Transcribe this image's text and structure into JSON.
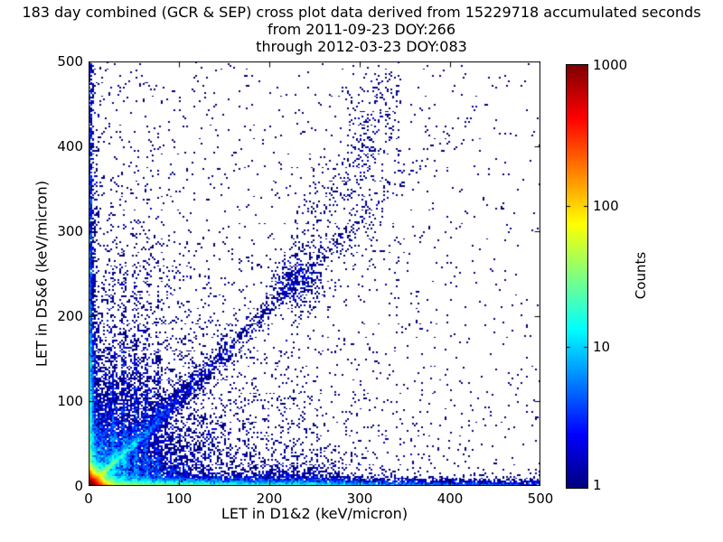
{
  "chart_data": {
    "type": "heatmap",
    "title_lines": [
      "183 day combined (GCR & SEP) cross plot data derived from 15229718 accumulated seconds",
      "from 2011-09-23 DOY:266",
      "through 2012-03-23 DOY:083"
    ],
    "xlabel": "LET in D1&2 (keV/micron)",
    "ylabel": "LET in D5&6 (keV/micron)",
    "xlim": [
      0,
      500
    ],
    "ylim": [
      0,
      500
    ],
    "xticks": [
      0,
      100,
      200,
      300,
      400,
      500
    ],
    "yticks": [
      0,
      100,
      200,
      300,
      400,
      500
    ],
    "grid": false,
    "bins": 250,
    "bin_size_kev_per_micron": 2,
    "colorbar": {
      "label": "Counts",
      "scale": "log",
      "min": 1,
      "max": 1000,
      "ticks": [
        1,
        10,
        100,
        1000
      ],
      "colormap": "jet"
    },
    "seed": 20120323,
    "density_components": [
      {
        "name": "origin-hotspot",
        "n": 26000,
        "x": [
          "exp",
          5.5
        ],
        "y": [
          "exp",
          5.5
        ]
      },
      {
        "name": "low-let-cloud",
        "n": 7500,
        "x": [
          "exp",
          45
        ],
        "y": [
          "exp",
          45
        ]
      },
      {
        "name": "bottom-band",
        "n": 8000,
        "x": [
          "exp",
          170
        ],
        "y": [
          "exp",
          3
        ]
      },
      {
        "name": "bottom-band-far",
        "n": 800,
        "x": [
          "unif",
          0,
          500
        ],
        "y": [
          "exp",
          4
        ]
      },
      {
        "name": "left-band",
        "n": 4000,
        "x": [
          "exp",
          2.2
        ],
        "y": [
          "exp",
          130
        ]
      },
      {
        "name": "left-band-far",
        "n": 500,
        "x": [
          "exp",
          2.5
        ],
        "y": [
          "unif",
          0,
          500
        ]
      },
      {
        "name": "bright-diagonal",
        "n": 2200,
        "x": [
          "exp",
          20
        ],
        "y": [
          "lin",
          0.97,
          0,
          2.2
        ]
      },
      {
        "name": "main-diagonal-band",
        "n": 2400,
        "x": [
          "exp",
          95
        ],
        "y": [
          "lin",
          1.04,
          0,
          9
        ]
      },
      {
        "name": "knot-cluster",
        "n": 300,
        "x": [
          "norm",
          228,
          14
        ],
        "y": [
          "norm",
          240,
          14
        ]
      },
      {
        "name": "upper-spray",
        "n": 420,
        "x": [
          "unif",
          225,
          345
        ],
        "y": [
          "lin",
          1.9,
          -180,
          40
        ]
      },
      {
        "name": "vertical-streak-1",
        "n": 430,
        "x": [
          "norm",
          27,
          1.7
        ],
        "y": [
          "exp",
          68
        ]
      },
      {
        "name": "vertical-streak-2",
        "n": 400,
        "x": [
          "norm",
          39,
          1.7
        ],
        "y": [
          "exp",
          72
        ]
      },
      {
        "name": "vertical-streak-3",
        "n": 370,
        "x": [
          "norm",
          52,
          1.9
        ],
        "y": [
          "exp",
          78
        ]
      },
      {
        "name": "vertical-streak-4",
        "n": 300,
        "x": [
          "norm",
          64,
          1.9
        ],
        "y": [
          "exp",
          80
        ]
      },
      {
        "name": "vertical-streak-5",
        "n": 230,
        "x": [
          "norm",
          77,
          2.1
        ],
        "y": [
          "exp",
          72
        ]
      },
      {
        "name": "diffuse-lower-left",
        "n": 2800,
        "x": [
          "exp",
          155
        ],
        "y": [
          "exp",
          155
        ]
      },
      {
        "name": "sparse-background",
        "n": 750,
        "x": [
          "unif",
          0,
          500
        ],
        "y": [
          "unif",
          0,
          500
        ]
      },
      {
        "name": "column-at-300",
        "n": 140,
        "x": [
          "norm",
          305,
          15
        ],
        "y": [
          "unif",
          250,
          495
        ]
      },
      {
        "name": "bottom-clump-230",
        "n": 650,
        "x": [
          "norm",
          235,
          32
        ],
        "y": [
          "exp",
          11
        ]
      },
      {
        "name": "top-left-scatter",
        "n": 22,
        "x": [
          "unif",
          2,
          45
        ],
        "y": [
          "unif",
          400,
          500
        ]
      }
    ]
  },
  "colors": {
    "background": "#ffffff",
    "frame": "#000000",
    "count_low": "#000083",
    "count_high": "#800000"
  }
}
